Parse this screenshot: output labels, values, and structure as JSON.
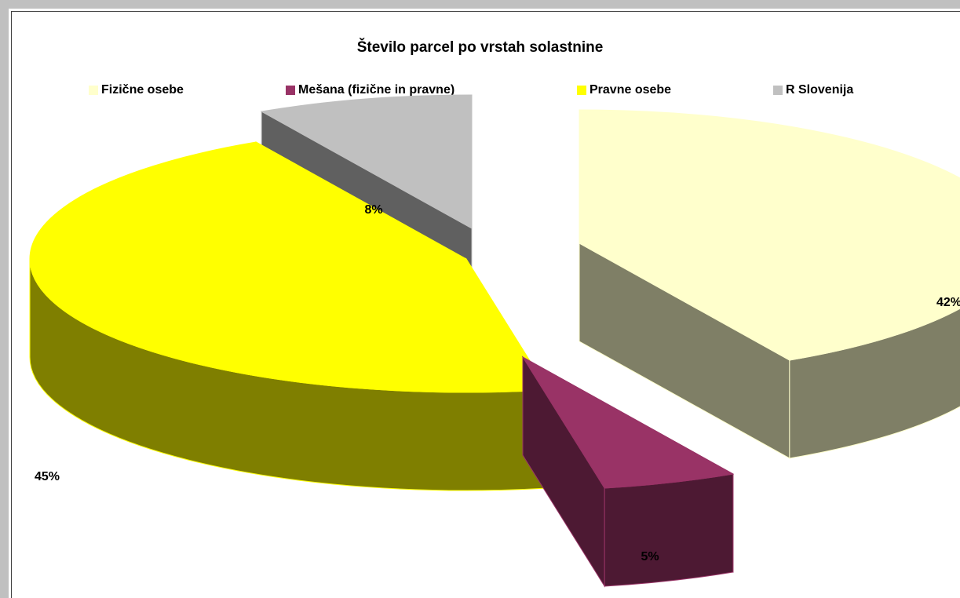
{
  "chart_data": {
    "type": "pie",
    "title": "Število parcel po vrstah solastnine",
    "legend_position": "top",
    "categories": [
      "Fizične osebe",
      "Mešana (fizične in pravne)",
      "Pravne osebe",
      "R Slovenija"
    ],
    "values": [
      42,
      5,
      45,
      8
    ],
    "data_labels": [
      "42%",
      "5%",
      "45%",
      "8%"
    ],
    "colors": {
      "top": [
        "#ffffcc",
        "#993366",
        "#ffff00",
        "#c0c0c0"
      ],
      "side": [
        "#7f7f66",
        "#4d1933",
        "#7f7f00",
        "#606060"
      ],
      "edge": [
        "#ffffcc",
        "#993366",
        "#ffff00",
        "#c0c0c0"
      ]
    },
    "style": "3d-exploded"
  }
}
